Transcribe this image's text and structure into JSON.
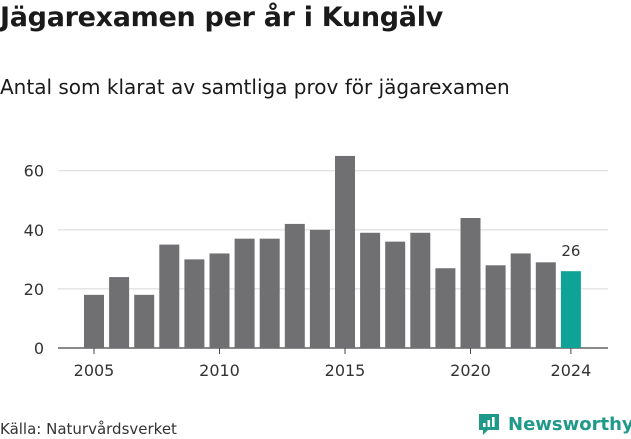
{
  "title": "Jägarexamen per år i Kungälv",
  "subtitle": "Antal som klarat av samtliga prov för jägarexamen",
  "source": "Källa: Naturvårdsverket",
  "brand": {
    "name": "Newsworthy",
    "icon": "newsworthy-logo-icon"
  },
  "colors": {
    "bar": "#707073",
    "highlight": "#0fa398",
    "grid": "#d8d8d8",
    "axis": "#444444"
  },
  "chart_data": {
    "type": "bar",
    "x": [
      2005,
      2006,
      2007,
      2008,
      2009,
      2010,
      2011,
      2012,
      2013,
      2014,
      2015,
      2016,
      2017,
      2018,
      2019,
      2020,
      2021,
      2022,
      2023,
      2024
    ],
    "values": [
      18,
      24,
      18,
      35,
      30,
      32,
      37,
      37,
      42,
      40,
      65,
      39,
      36,
      39,
      27,
      44,
      28,
      32,
      29,
      26
    ],
    "highlight_index": 19,
    "data_labels": [
      {
        "index": 19,
        "text": "26"
      }
    ],
    "x_ticks": [
      2005,
      2010,
      2015,
      2020,
      2024
    ],
    "y_ticks": [
      0,
      20,
      40,
      60
    ],
    "ylim": [
      0,
      66
    ],
    "grid": true,
    "xlabel": "",
    "ylabel": ""
  }
}
